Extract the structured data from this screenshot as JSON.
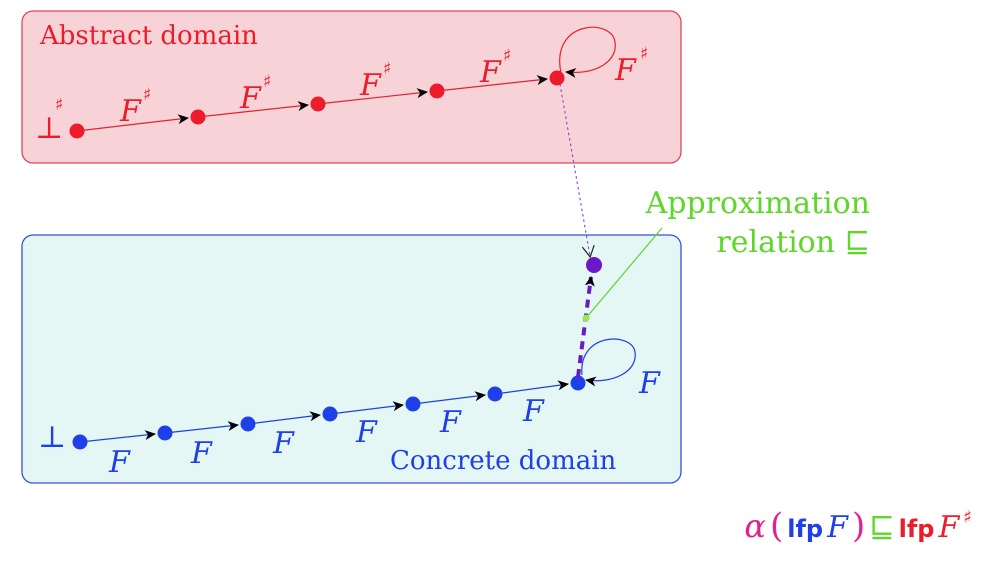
{
  "abstract_domain": {
    "title": "Abstract domain",
    "bottom_symbol": "⊥",
    "bottom_sup": "♯",
    "edge_label": "F",
    "edge_sup": "♯",
    "color": "#ee1b2a",
    "box_fill": "#f7d3d8",
    "box_stroke": "#e0455a"
  },
  "concrete_domain": {
    "title": "Concrete domain",
    "bottom_symbol": "⊥",
    "edge_label": "F",
    "color": "#1f3fe8",
    "box_fill": "#e4f7f4",
    "box_stroke": "#3a4ee0"
  },
  "approximation": {
    "line1": "Approximation",
    "line2": "relation",
    "symbol": "⊑",
    "color": "#5ed62a",
    "edge_color": "#6a18c8"
  },
  "formula": {
    "alpha": "α",
    "open": "(",
    "lfp1": "lfp",
    "F1": "F",
    "close": ")",
    "rel": "⊑",
    "lfp2": "lfp",
    "F2": "F",
    "sharp": "♯",
    "alpha_color": "#e0228c",
    "left_color": "#1f3fe8",
    "right_color": "#ee1b2a"
  }
}
